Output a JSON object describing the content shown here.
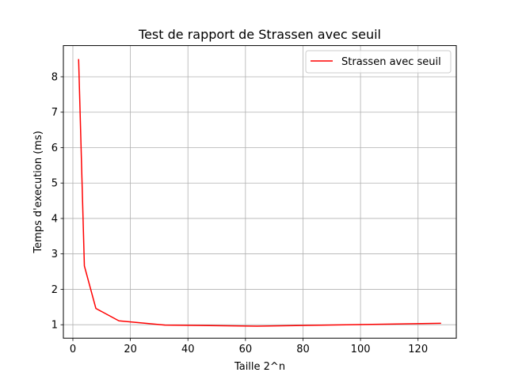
{
  "chart_data": {
    "type": "line",
    "title": "Test de rapport de Strassen avec seuil",
    "xlabel": "Taille 2^n",
    "ylabel": "Temps d'execution (ms)",
    "xlim": [
      -3.3,
      133.3
    ],
    "ylim": [
      0.62,
      8.88
    ],
    "xticks": [
      0,
      20,
      40,
      60,
      80,
      100,
      120
    ],
    "yticks": [
      1,
      2,
      3,
      4,
      5,
      6,
      7,
      8
    ],
    "grid": true,
    "legend_position": "upper right",
    "series": [
      {
        "name": "Strassen avec seuil",
        "color": "#ff0000",
        "x": [
          2,
          4,
          8,
          16,
          32,
          64,
          128
        ],
        "y": [
          8.5,
          2.66,
          1.46,
          1.11,
          0.99,
          0.96,
          1.04
        ]
      }
    ]
  }
}
